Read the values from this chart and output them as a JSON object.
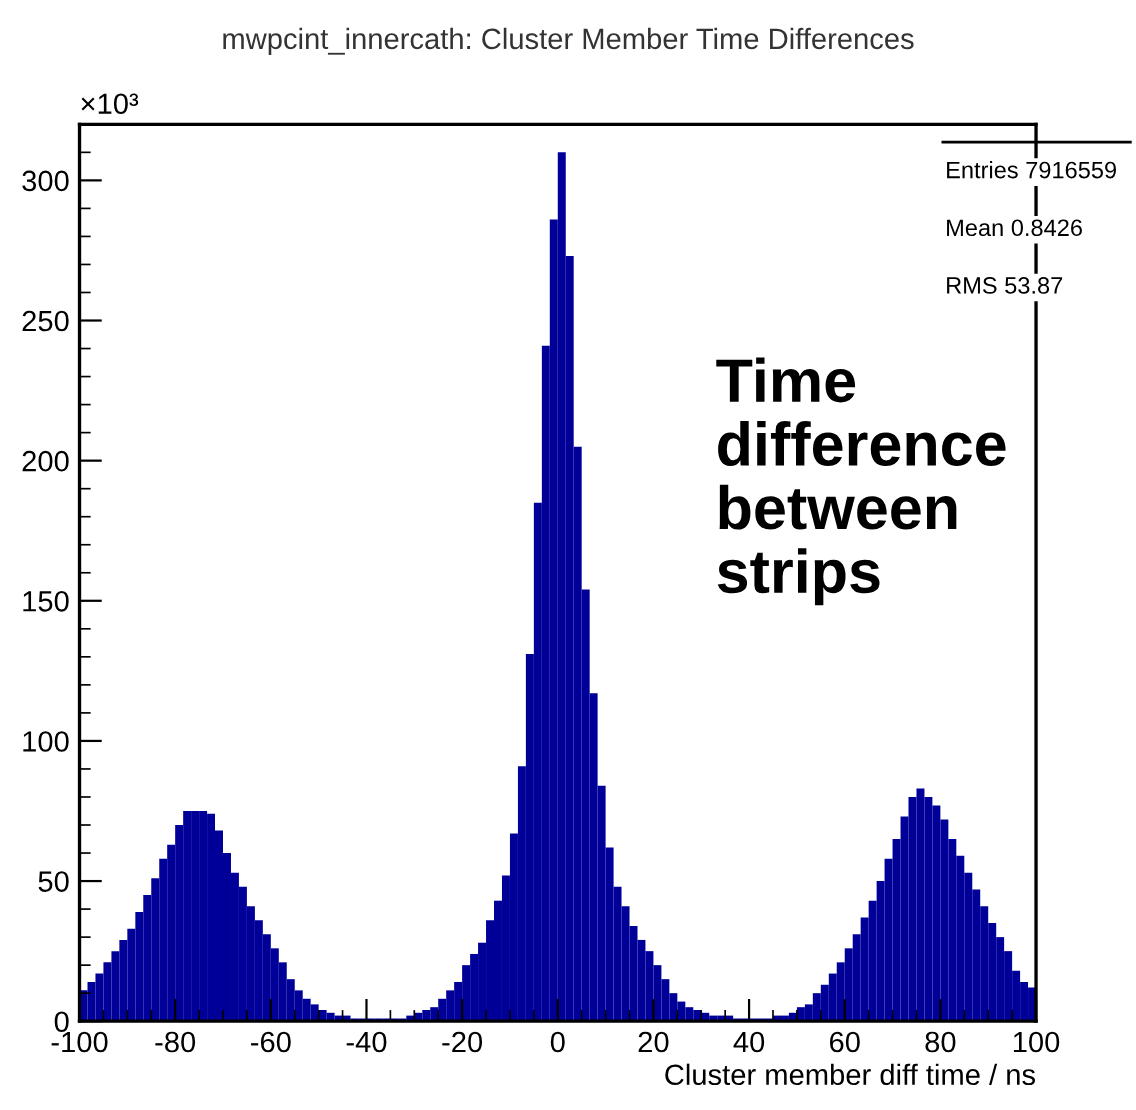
{
  "chart_data": {
    "type": "histogram",
    "title": "mwpcint_innercath: Cluster Member Time Differences",
    "xlabel": "Cluster member diff time / ns",
    "annotations": [
      "×10³",
      "Entries 7916559",
      "Mean 0.8426",
      "RMS 53.87",
      "Time difference between strips"
    ],
    "color": "#000099",
    "bins": [
      -100,
      -98.33,
      -96.67,
      -95,
      -93.33,
      -91.67,
      -90,
      -88.33,
      -86.67,
      -85,
      -83.33,
      -81.67,
      -80,
      -78.33,
      -76.67,
      -75,
      -73.33,
      -71.67,
      -70,
      -68.33,
      -66.67,
      -65,
      -63.33,
      -61.67,
      -60,
      -58.33,
      -56.67,
      -55,
      -53.33,
      -51.67,
      -50,
      -48.33,
      -46.67,
      -45,
      -43.33,
      -41.67,
      -40,
      -38.33,
      -36.67,
      -35,
      -33.33,
      -31.67,
      -30,
      -28.33,
      -26.67,
      -25,
      -23.33,
      -21.67,
      -20,
      -18.33,
      -16.67,
      -15,
      -13.33,
      -11.67,
      -10,
      -8.33,
      -6.67,
      -5,
      -3.33,
      -1.67,
      0,
      1.67,
      3.33,
      5,
      6.67,
      8.33,
      10,
      11.67,
      13.33,
      15,
      16.67,
      18.33,
      20,
      21.67,
      23.33,
      25,
      26.67,
      28.33,
      30,
      31.67,
      33.33,
      35,
      36.67,
      38.33,
      40,
      41.67,
      43.33,
      45,
      46.67,
      48.33,
      50,
      51.67,
      53.33,
      55,
      56.67,
      58.33,
      60,
      61.67,
      63.33,
      65,
      66.67,
      68.33,
      70,
      71.67,
      73.33,
      75,
      76.67,
      78.33,
      80,
      81.67,
      83.33,
      85,
      86.67,
      88.33,
      90,
      91.67,
      93.33,
      95,
      96.67,
      98.33,
      100
    ],
    "values": [
      11,
      14,
      17,
      21,
      25,
      29,
      33,
      39,
      45,
      51,
      58,
      63,
      70,
      75,
      75,
      75,
      74,
      68,
      60,
      53,
      48,
      41,
      36,
      31,
      26,
      21,
      15,
      11,
      8,
      6,
      4,
      3,
      2,
      2,
      1,
      1,
      1,
      1,
      1,
      1,
      1,
      2,
      3,
      4,
      5,
      8,
      11,
      14,
      20,
      24,
      28,
      36,
      43,
      52,
      67,
      91,
      131,
      185,
      241,
      286,
      310,
      273,
      205,
      154,
      117,
      84,
      62,
      48,
      41,
      34,
      29,
      25,
      20,
      15,
      10,
      7,
      5,
      4,
      3,
      2,
      2,
      2,
      1,
      1,
      1,
      1,
      1,
      2,
      2,
      3,
      5,
      6,
      10,
      13,
      17,
      21,
      26,
      31,
      37,
      43,
      50,
      58,
      65,
      73,
      80,
      83,
      80,
      77,
      72,
      65,
      59,
      53,
      47,
      41,
      35,
      30,
      25,
      18,
      14,
      12
    ],
    "xlim": [
      -100,
      100
    ],
    "ylim": [
      0,
      320
    ],
    "xticks": [
      -100,
      -80,
      -60,
      -40,
      -20,
      0,
      20,
      40,
      60,
      80,
      100
    ],
    "yticks": [
      0,
      50,
      100,
      150,
      200,
      250,
      300
    ]
  }
}
